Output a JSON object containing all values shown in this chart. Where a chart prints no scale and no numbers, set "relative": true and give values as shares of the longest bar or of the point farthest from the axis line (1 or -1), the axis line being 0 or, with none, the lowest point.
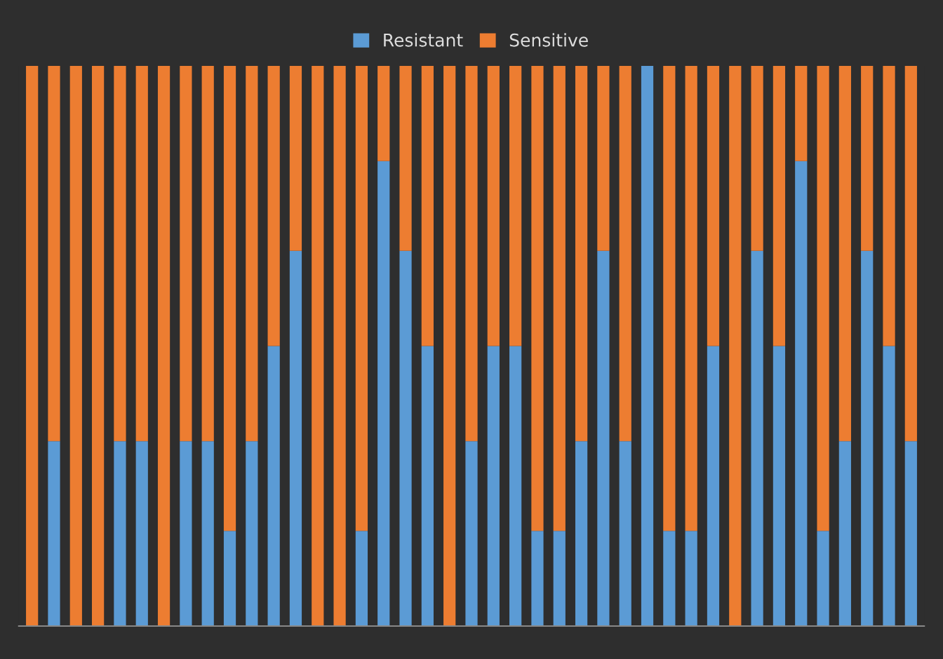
{
  "chart_data": {
    "type": "bar",
    "stacked": true,
    "relative": true,
    "legend": "top",
    "categories": [
      null,
      null,
      null,
      null,
      null,
      null,
      null,
      null,
      null,
      null,
      null,
      null,
      null,
      null,
      null,
      null,
      null,
      null,
      null,
      null,
      null,
      null,
      null,
      null,
      null,
      null,
      null,
      null,
      null,
      null,
      null,
      null,
      null,
      null,
      null,
      null,
      null,
      null,
      null,
      null,
      null
    ],
    "series": [
      {
        "name": "Resistant",
        "color": "#5b9bd5",
        "values": [
          0,
          0.33,
          0,
          0,
          0.33,
          0.33,
          0,
          0.33,
          0.33,
          0.17,
          0.33,
          0.5,
          0.67,
          0,
          0,
          0.17,
          0.83,
          0.67,
          0.5,
          0,
          0.33,
          0.5,
          0.5,
          0.17,
          0.17,
          0.33,
          0.67,
          0.33,
          1,
          0.17,
          0.17,
          0.5,
          0,
          0.67,
          0.5,
          0.83,
          0.17,
          0.33,
          0.67,
          0.5,
          0.33
        ]
      },
      {
        "name": "Sensitive",
        "color": "#ed7d31",
        "values": [
          1,
          0.67,
          1,
          1,
          0.67,
          0.67,
          1,
          0.67,
          0.67,
          0.83,
          0.67,
          0.5,
          0.33,
          1,
          1,
          0.83,
          0.17,
          0.33,
          0.5,
          1,
          0.67,
          0.5,
          0.5,
          0.83,
          0.83,
          0.67,
          0.33,
          0.67,
          0,
          0.83,
          0.83,
          0.5,
          1,
          0.33,
          0.5,
          0.17,
          0.83,
          0.67,
          0.33,
          0.5,
          0.67
        ]
      }
    ]
  }
}
